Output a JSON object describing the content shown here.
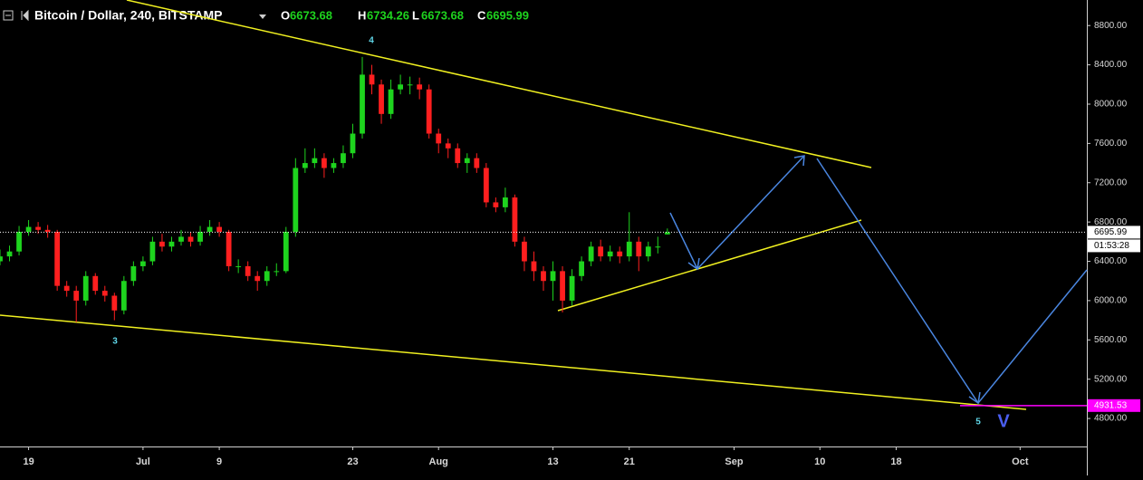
{
  "chart_data": {
    "type": "candlestick",
    "title": "Bitcoin / Dollar, 240, BITSTAMP",
    "ohlc_labels": [
      "O",
      "H",
      "L",
      "C"
    ],
    "x": [
      "06-16",
      "06-17",
      "06-18",
      "06-19",
      "06-20",
      "06-21",
      "06-22",
      "06-23",
      "06-24",
      "06-25",
      "06-26",
      "06-27",
      "06-28",
      "06-29",
      "06-30",
      "07-01",
      "07-02",
      "07-03",
      "07-04",
      "07-05",
      "07-06",
      "07-07",
      "07-08",
      "07-09",
      "07-10",
      "07-11",
      "07-12",
      "07-13",
      "07-14",
      "07-15",
      "07-16",
      "07-17",
      "07-18",
      "07-19",
      "07-20",
      "07-21",
      "07-22",
      "07-23",
      "07-24",
      "07-25",
      "07-26",
      "07-27",
      "07-28",
      "07-29",
      "07-30",
      "07-31",
      "08-01",
      "08-02",
      "08-03",
      "08-04",
      "08-05",
      "08-06",
      "08-07",
      "08-08",
      "08-09",
      "08-10",
      "08-11",
      "08-12",
      "08-13",
      "08-14",
      "08-15",
      "08-16",
      "08-17",
      "08-18",
      "08-19",
      "08-20",
      "08-21",
      "08-22",
      "08-23",
      "08-24",
      "08-25"
    ],
    "open": [
      6400,
      6450,
      6500,
      6700,
      6750,
      6720,
      6700,
      6150,
      6100,
      6000,
      6250,
      6100,
      6050,
      5900,
      6200,
      6350,
      6400,
      6600,
      6550,
      6600,
      6650,
      6600,
      6700,
      6750,
      6700,
      6350,
      6350,
      6250,
      6200,
      6300,
      6300,
      6700,
      7350,
      7400,
      7450,
      7350,
      7400,
      7500,
      7700,
      8300,
      8200,
      7900,
      8150,
      8200,
      8200,
      8150,
      7700,
      7600,
      7550,
      7400,
      7450,
      7350,
      7000,
      6950,
      7050,
      6600,
      6400,
      6300,
      6200,
      6300,
      6000,
      6250,
      6400,
      6550,
      6450,
      6500,
      6450,
      6600,
      6450,
      6550,
      6673.68
    ],
    "high": [
      6520,
      6560,
      6760,
      6820,
      6800,
      6770,
      6720,
      6200,
      6150,
      6300,
      6280,
      6150,
      6080,
      6250,
      6400,
      6450,
      6650,
      6680,
      6650,
      6720,
      6700,
      6760,
      6820,
      6800,
      6720,
      6420,
      6400,
      6300,
      6350,
      6380,
      6750,
      7450,
      7550,
      7550,
      7500,
      7450,
      7580,
      7800,
      8480,
      8400,
      8250,
      8250,
      8300,
      8280,
      8270,
      8200,
      7750,
      7650,
      7600,
      7500,
      7500,
      7400,
      7050,
      7150,
      7080,
      6650,
      6500,
      6350,
      6400,
      6350,
      6320,
      6450,
      6600,
      6620,
      6560,
      6550,
      6900,
      6650,
      6600,
      6650,
      6734.26
    ],
    "low": [
      6360,
      6400,
      6460,
      6660,
      6680,
      6640,
      6100,
      6040,
      5780,
      5950,
      6060,
      5990,
      5800,
      5860,
      6150,
      6300,
      6360,
      6500,
      6500,
      6560,
      6550,
      6560,
      6660,
      6650,
      6300,
      6280,
      6200,
      6100,
      6150,
      6250,
      6280,
      6650,
      7300,
      7350,
      7250,
      7300,
      7350,
      7450,
      7650,
      8100,
      7800,
      7850,
      8100,
      8100,
      8050,
      7650,
      7500,
      7450,
      7350,
      7300,
      7300,
      6950,
      6900,
      6900,
      6550,
      6300,
      6200,
      6100,
      6000,
      5880,
      5950,
      6200,
      6350,
      6400,
      6400,
      6380,
      6400,
      6300,
      6400,
      6480,
      6673.68
    ],
    "close": [
      6450,
      6500,
      6700,
      6750,
      6720,
      6700,
      6150,
      6100,
      6000,
      6250,
      6100,
      6050,
      5900,
      6200,
      6350,
      6400,
      6600,
      6550,
      6600,
      6650,
      6600,
      6700,
      6750,
      6700,
      6350,
      6350,
      6250,
      6200,
      6300,
      6300,
      6700,
      7350,
      7400,
      7450,
      7350,
      7400,
      7500,
      7700,
      8300,
      8200,
      7900,
      8150,
      8200,
      8200,
      8150,
      7700,
      7600,
      7550,
      7400,
      7450,
      7350,
      7000,
      6950,
      7050,
      6600,
      6400,
      6300,
      6200,
      6300,
      6000,
      6250,
      6400,
      6550,
      6450,
      6500,
      6450,
      6600,
      6450,
      6550,
      6550,
      6695.99
    ],
    "up_color": "#1ed41e",
    "down_color": "#ff1f1f",
    "xlim": [
      "06-16",
      "10-08"
    ],
    "xticks": [
      {
        "value": "06-19",
        "label": "19"
      },
      {
        "value": "07-01",
        "label": "Jul"
      },
      {
        "value": "07-09",
        "label": "9"
      },
      {
        "value": "07-23",
        "label": "23"
      },
      {
        "value": "08-01",
        "label": "Aug"
      },
      {
        "value": "08-13",
        "label": "13"
      },
      {
        "value": "08-21",
        "label": "21"
      },
      {
        "value": "09-01",
        "label": "Sep"
      },
      {
        "value": "09-10",
        "label": "10"
      },
      {
        "value": "09-18",
        "label": "18"
      },
      {
        "value": "10-01",
        "label": "Oct"
      }
    ],
    "ylim": [
      4515,
      9060
    ],
    "yticks": [
      {
        "value": 4800,
        "label": "4800.00"
      },
      {
        "value": 5200,
        "label": "5200.00"
      },
      {
        "value": 5600,
        "label": "5600.00"
      },
      {
        "value": 6000,
        "label": "6000.00"
      },
      {
        "value": 6400,
        "label": "6400.00"
      },
      {
        "value": 6800,
        "label": "6800.00"
      },
      {
        "value": 7200,
        "label": "7200.00"
      },
      {
        "value": 7600,
        "label": "7600.00"
      },
      {
        "value": 8000,
        "label": "8000.00"
      },
      {
        "value": 8400,
        "label": "8400.00"
      },
      {
        "value": 8800,
        "label": "8800.00"
      }
    ],
    "countdown": "01:53:28",
    "level": 4931.53,
    "level_color": "#ff00ff",
    "annotations": [
      "4",
      "3",
      "5",
      "V"
    ]
  }
}
